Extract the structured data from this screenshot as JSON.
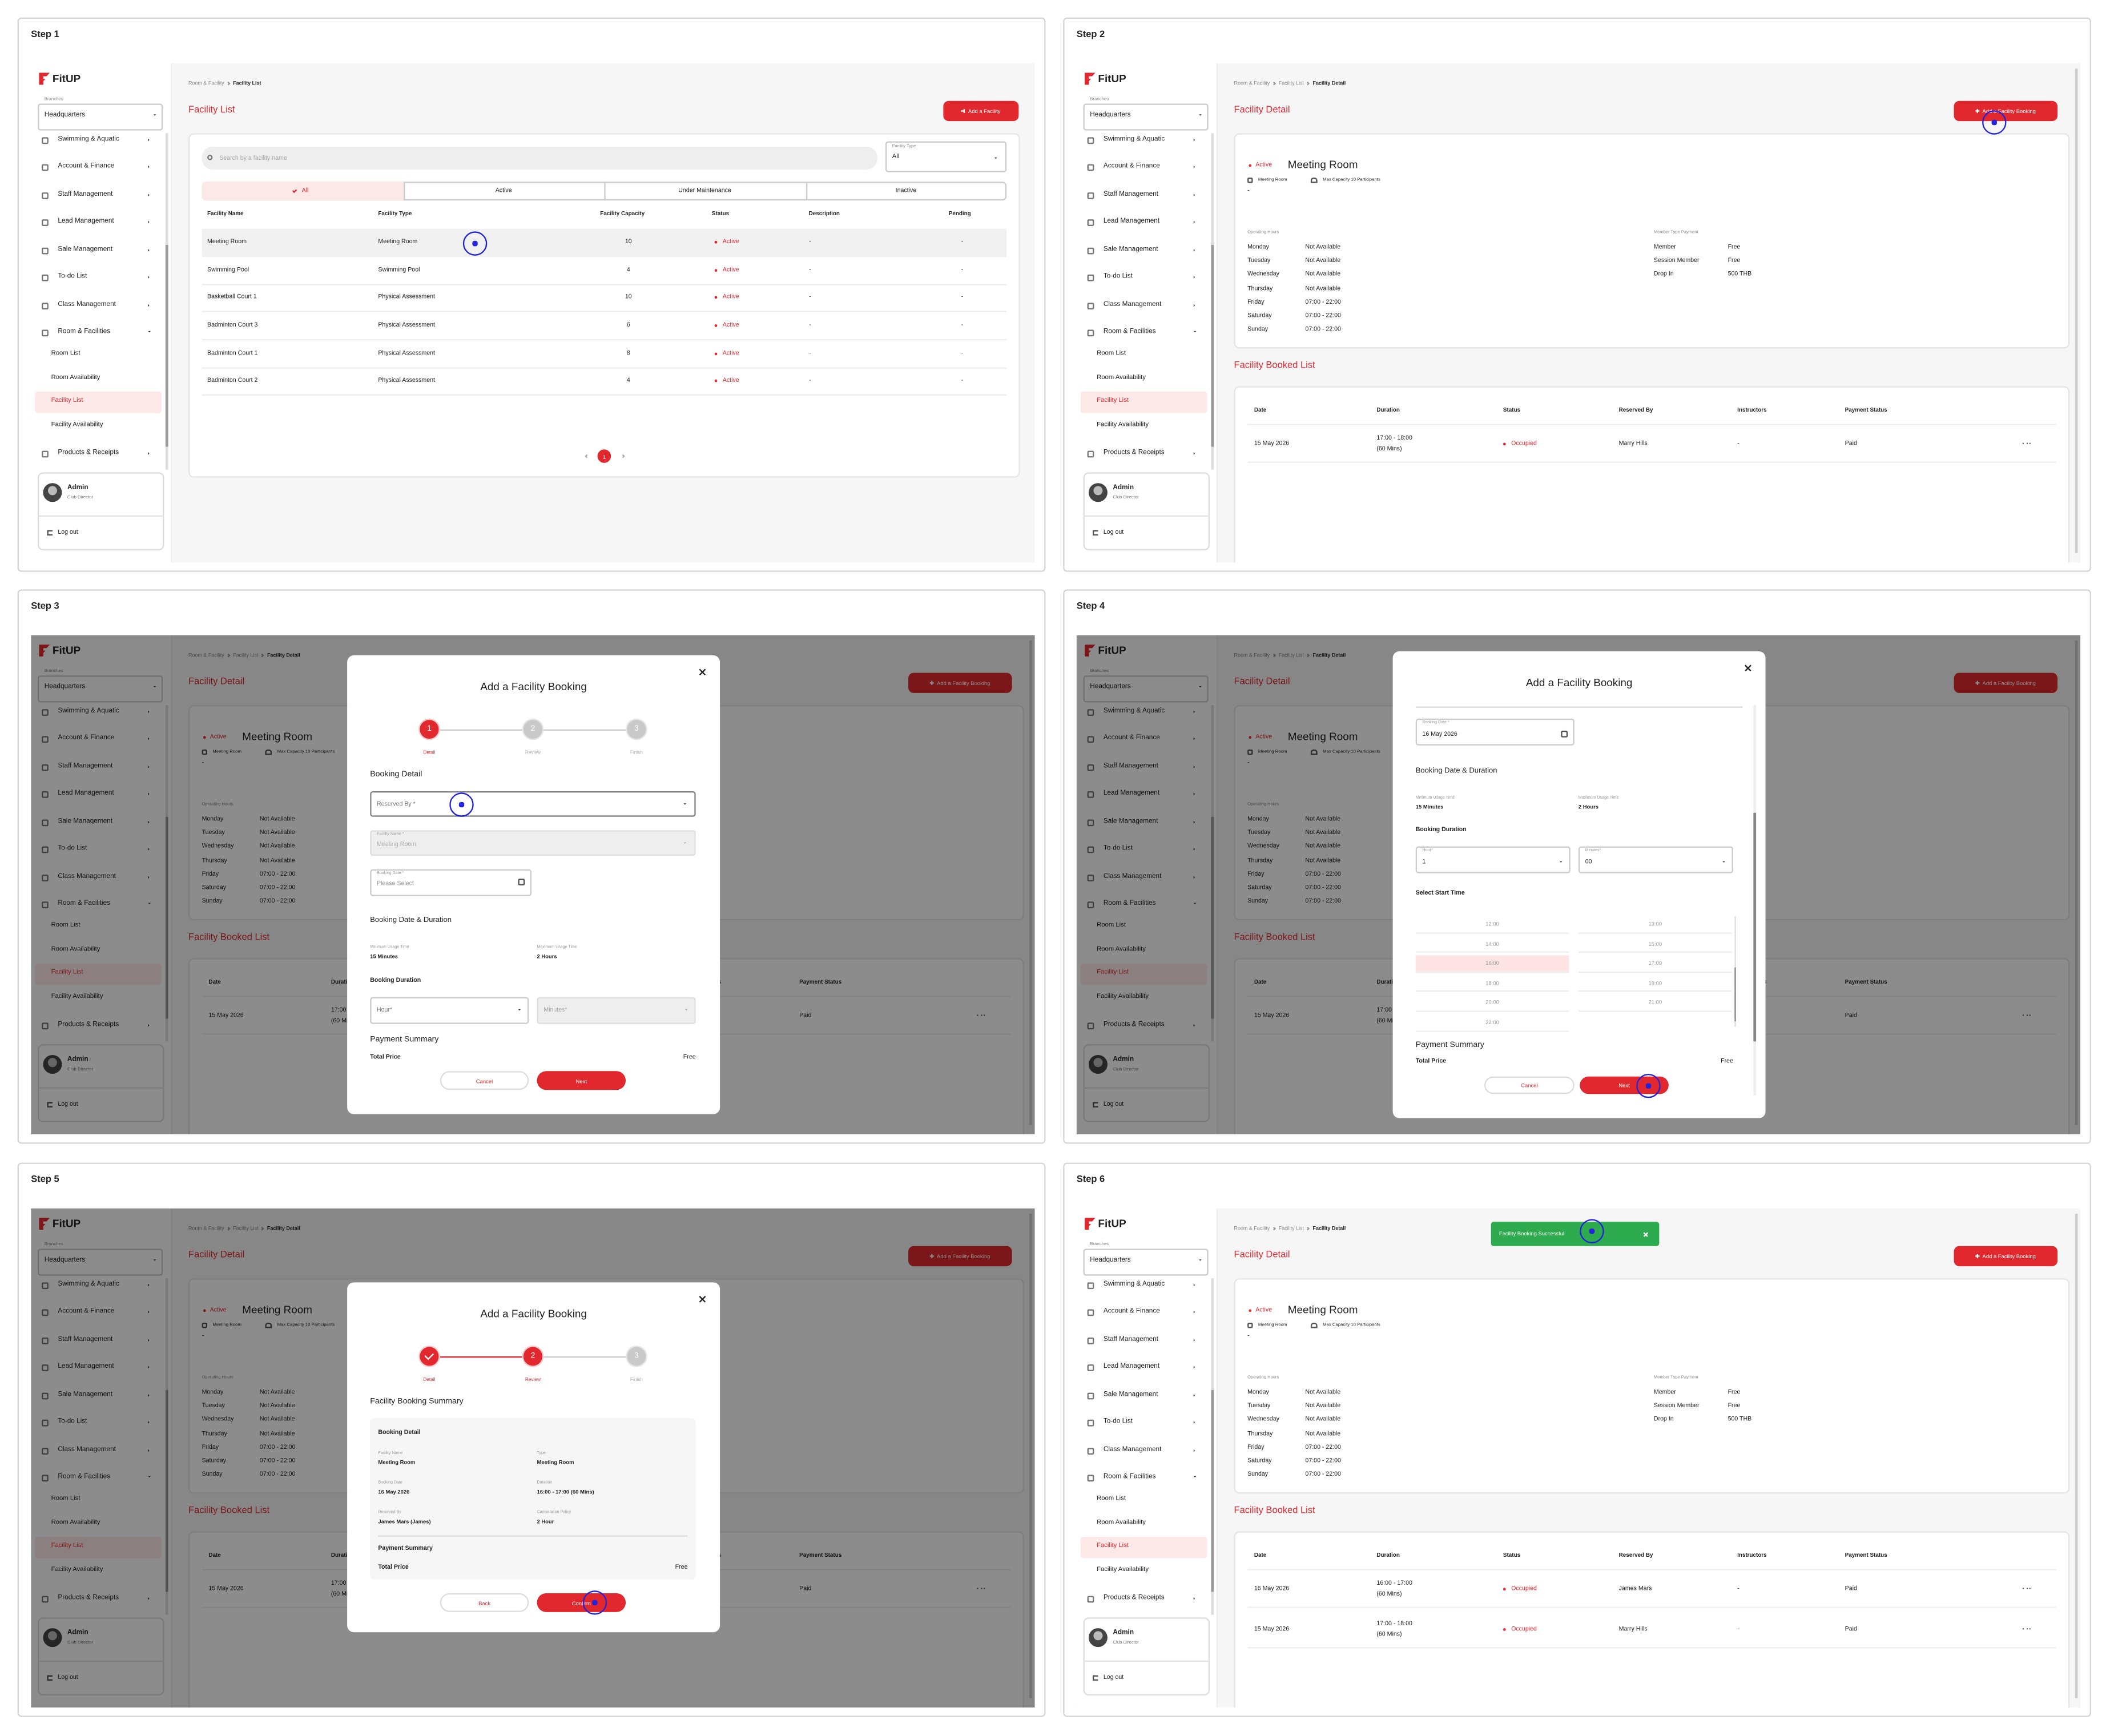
{
  "steps": [
    "Step 1",
    "Step 2",
    "Step 3",
    "Step 4",
    "Step 5",
    "Step 6"
  ],
  "sidebar": {
    "logo": "FitUP",
    "branch_label": "Branches",
    "branch": "Headquarters",
    "menu": [
      "Swimming & Aquatic",
      "Account & Finance",
      "Staff Management",
      "Lead Management",
      "Sale Management",
      "To-do List",
      "Class Management",
      "Room & Facilities"
    ],
    "submenu": [
      "Room List",
      "Room Availability",
      "Facility List",
      "Facility Availability"
    ],
    "menu_last": "Products & Receipts",
    "user_name": "Admin",
    "user_role": "Club Director",
    "logout": "Log out"
  },
  "breadcrumb": [
    "Room & Facility",
    "Facility List",
    "Facility Detail"
  ],
  "facility_list": {
    "title": "Facility List",
    "add_button": "Add a Facility",
    "search_placeholder": "Search by a facility name",
    "type_label": "Facility Type",
    "type_value": "All",
    "tabs": [
      "All",
      "Active",
      "Under Maintenance",
      "Inactive"
    ],
    "columns": [
      "Facility Name",
      "Facility Type",
      "Facility Capacity",
      "Status",
      "Description",
      "Pending"
    ],
    "rows": [
      [
        "Meeting Room",
        "Meeting Room",
        10,
        "Active",
        "-",
        "-"
      ],
      [
        "Swimming Pool",
        "Swimming Pool",
        4,
        "Active",
        "-",
        "-"
      ],
      [
        "Basketball Court 1",
        "Physical Assessment",
        10,
        "Active",
        "-",
        "-"
      ],
      [
        "Badminton Court 3",
        "Physical Assessment",
        6,
        "Active",
        "-",
        "-"
      ],
      [
        "Badminton Court 1",
        "Physical Assessment",
        8,
        "Active",
        "-",
        "-"
      ],
      [
        "Badminton Court 2",
        "Physical Assessment",
        4,
        "Active",
        "-",
        "-"
      ]
    ],
    "page": 1
  },
  "facility_detail": {
    "title": "Facility Detail",
    "add_button": "Add a Facility Booking",
    "status": "Active",
    "name": "Meeting Room",
    "type": "Meeting Room",
    "capacity": "Max Capacity 10 Participants",
    "description": "-",
    "hours_label": "Operating Hours",
    "hours": [
      [
        "Monday",
        "Not Available"
      ],
      [
        "Tuesday",
        "Not Available"
      ],
      [
        "Wednesday",
        "Not Available"
      ],
      [
        "Thursday",
        "Not Available"
      ],
      [
        "Friday",
        "07:00 - 22:00"
      ],
      [
        "Saturday",
        "07:00 - 22:00"
      ],
      [
        "Sunday",
        "07:00 - 22:00"
      ]
    ],
    "payment_label": "Member Type Payment",
    "payments": [
      [
        "Member",
        "Free"
      ],
      [
        "Session Member",
        "Free"
      ],
      [
        "Drop In",
        "500 THB"
      ]
    ],
    "booked_title": "Facility Booked List",
    "booked_columns": [
      "Date",
      "Duration",
      "Status",
      "Reserved By",
      "Instructors",
      "Payment Status"
    ],
    "booked_rows": [
      {
        "date": "16 May 2026",
        "time": "16:00 - 17:00",
        "length": "(60 Mins)",
        "status": "Occupied",
        "reserved_by": "James Mars",
        "instructor": "-",
        "payment": "Paid"
      },
      {
        "date": "15 May 2026",
        "time": "17:00 - 18:00",
        "length": "(60 Mins)",
        "status": "Occupied",
        "reserved_by": "Marry Hills",
        "instructor": "-",
        "payment": "Paid"
      }
    ]
  },
  "booking_modal": {
    "title": "Add a Facility Booking",
    "stepper": [
      {
        "number": 1,
        "label": "Detail"
      },
      {
        "number": 2,
        "label": "Review"
      },
      {
        "number": 3,
        "label": "Finish"
      }
    ],
    "cancel": "Cancel",
    "next": "Next",
    "back": "Back",
    "confirm": "Confirm"
  },
  "booking_form": {
    "section": "Booking Detail",
    "reserved_by": "Reserved By *",
    "facility_name_label": "Facility Name *",
    "facility_name": "Meeting Room",
    "booking_date_label": "Booking Date *",
    "booking_date_placeholder": "Please Select",
    "booking_date": "16 May 2026",
    "duration_section": "Booking Date & Duration",
    "min_label": "Minimum Usage Time",
    "min_value": "15 Minutes",
    "max_label": "Maximum Usage Time",
    "max_value": "2 Hours",
    "duration_label": "Booking Duration",
    "hour_label": "Hour*",
    "hour_value": 1,
    "minutes_label": "Minutes*",
    "minutes_value": "00",
    "start_time_label": "Select Start Time",
    "start_times": [
      "12:00",
      "13:00",
      "14:00",
      "15:00",
      "16:00",
      "17:00",
      "18:00",
      "19:00",
      "20:00",
      "21:00",
      "22:00"
    ],
    "selected_start": "16:00",
    "payment_section": "Payment Summary",
    "total_label": "Total Price",
    "total_value": "Free"
  },
  "booking_review": {
    "title": "Facility Booking Summary",
    "section": "Booking Detail",
    "fields": [
      {
        "label": "Facility Name",
        "value": "Meeting Room"
      },
      {
        "label": "Type",
        "value": "Meeting Room"
      },
      {
        "label": "Booking Date",
        "value": "16 May 2026"
      },
      {
        "label": "Duration",
        "value": "16:00 - 17:00 (60 Mins)"
      },
      {
        "label": "Reserved By",
        "value": "James Mars (James)"
      },
      {
        "label": "Cancellation Policy",
        "value": "2 Hour"
      }
    ]
  },
  "toast": "Facility Booking Successful"
}
